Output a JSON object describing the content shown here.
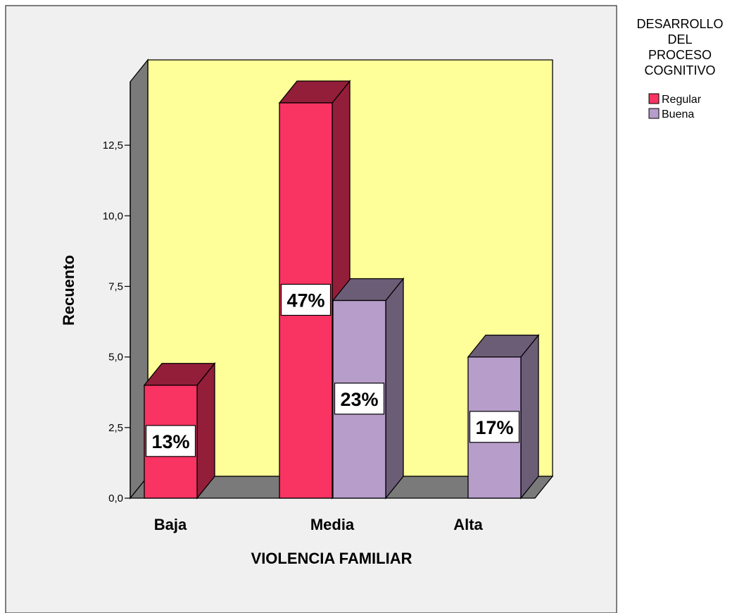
{
  "chart_data": {
    "type": "bar",
    "title": "",
    "xlabel": "VIOLENCIA FAMILIAR",
    "ylabel": "Recuento",
    "categories": [
      "Baja",
      "Media",
      "Alta"
    ],
    "ylim": [
      0,
      14.5
    ],
    "yticks": [
      {
        "value": 0,
        "label": "0,0"
      },
      {
        "value": 2.5,
        "label": "2,5"
      },
      {
        "value": 5,
        "label": "5,0"
      },
      {
        "value": 7.5,
        "label": "7,5"
      },
      {
        "value": 10,
        "label": "10,0"
      },
      {
        "value": 12.5,
        "label": "12,5"
      }
    ],
    "grid": false,
    "three_d": true,
    "legend": {
      "title_lines": [
        "DESARROLLO",
        "DEL",
        "PROCESO",
        "COGNITIVO"
      ],
      "position": "top-right"
    },
    "series": [
      {
        "name": "Regular",
        "color": "#f93362",
        "side_color": "#931e3a",
        "values": [
          4,
          14,
          null
        ],
        "labels": [
          "13%",
          "47%",
          ""
        ]
      },
      {
        "name": "Buena",
        "color": "#b79dca",
        "side_color": "#6c5d77",
        "values": [
          null,
          7,
          5
        ],
        "labels": [
          "",
          "23%",
          "17%"
        ]
      }
    ],
    "colors": {
      "back_wall": "#ffff99",
      "side_wall": "#7a7a7a",
      "floor": "#7a7a7a",
      "background": "#f0f0f0"
    }
  }
}
